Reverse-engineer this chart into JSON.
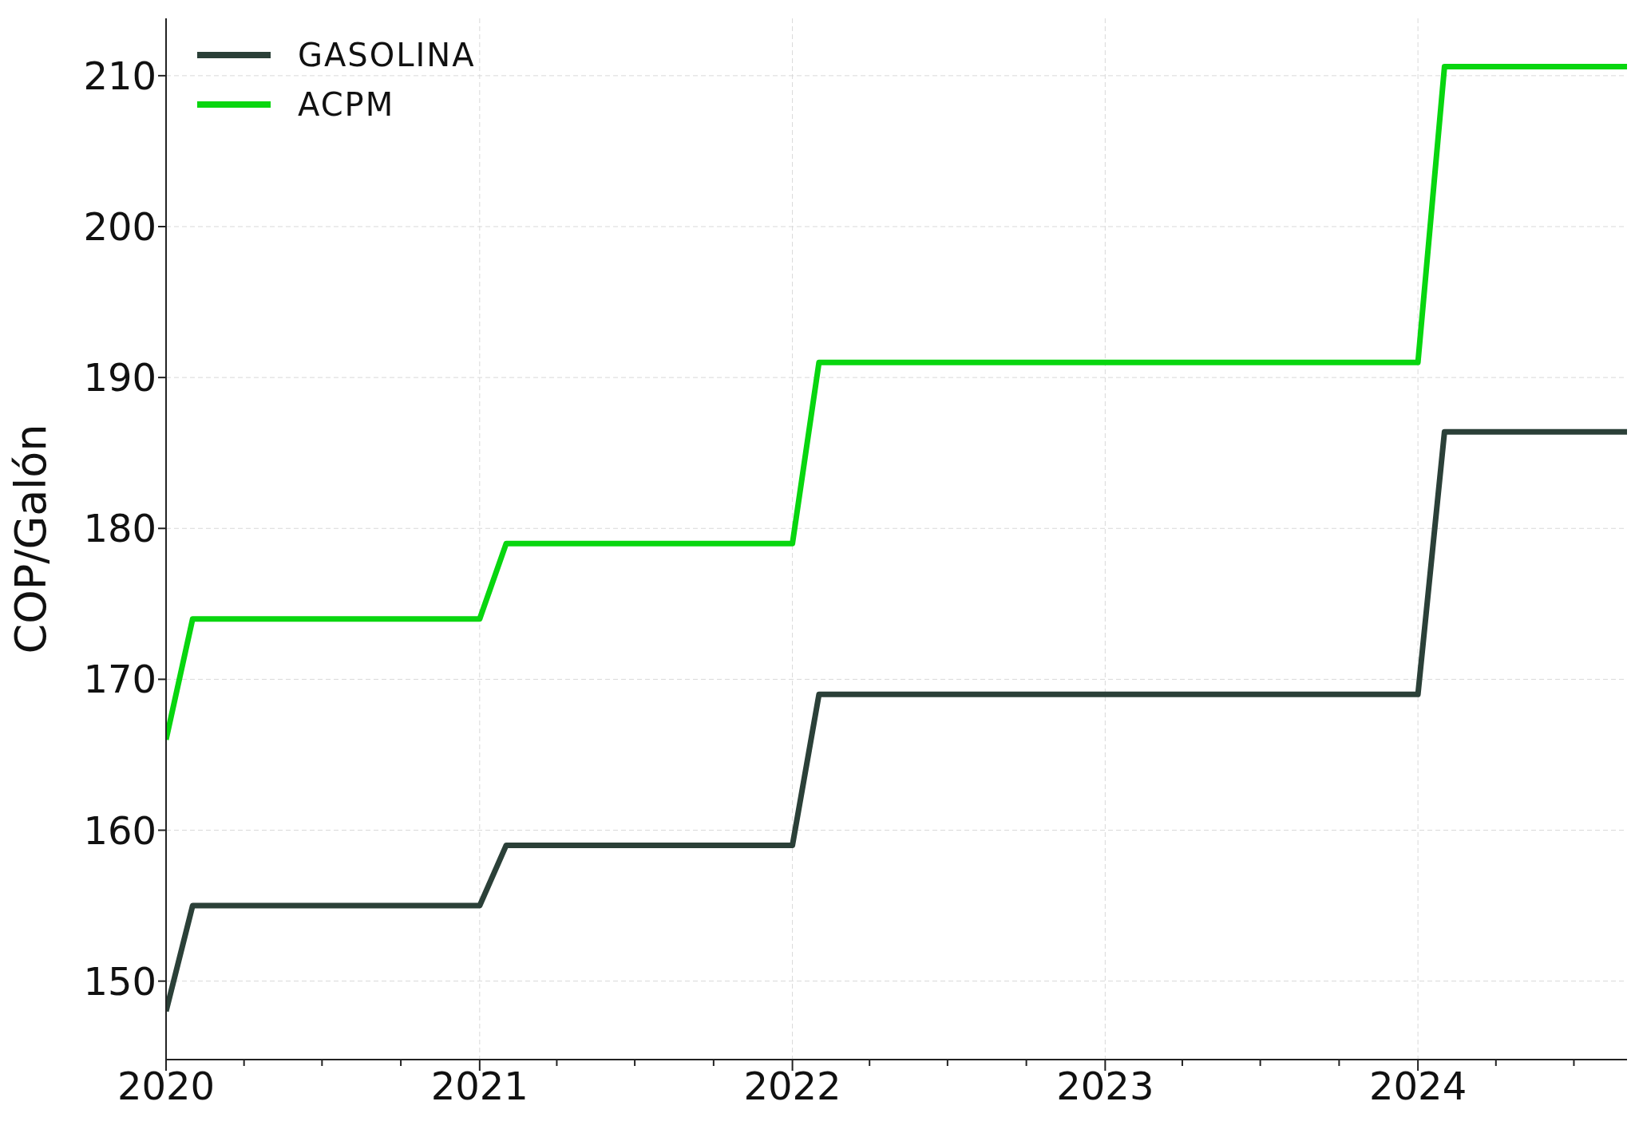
{
  "chart_data": {
    "type": "line",
    "ylabel": "COP/Galón",
    "series": [
      {
        "name": "GASOLINA",
        "color": "#2b4038",
        "x": [
          "2020-01",
          "2020-02",
          "2021-01",
          "2021-02",
          "2022-01",
          "2022-02",
          "2024-01",
          "2024-02",
          "2024-09"
        ],
        "values": [
          148,
          155,
          155,
          159,
          159,
          169,
          169,
          186.4,
          186.4
        ]
      },
      {
        "name": "ACPM",
        "color": "#08d60f",
        "x": [
          "2020-01",
          "2020-02",
          "2021-01",
          "2021-02",
          "2022-01",
          "2022-02",
          "2024-01",
          "2024-02",
          "2024-09"
        ],
        "values": [
          166,
          174,
          174,
          179,
          179,
          191,
          191,
          210.6,
          210.6
        ]
      }
    ],
    "xlim": [
      "2020-01",
      "2024-09"
    ],
    "xticks": [
      "2020",
      {
        "value": "2020-04",
        "label": null
      },
      {
        "value": "2020-07",
        "label": null
      },
      {
        "value": "2020-10",
        "label": null
      },
      "2021",
      {
        "value": "2021-04",
        "label": null
      },
      {
        "value": "2021-07",
        "label": null
      },
      {
        "value": "2021-10",
        "label": null
      },
      "2022",
      {
        "value": "2022-04",
        "label": null
      },
      {
        "value": "2022-07",
        "label": null
      },
      {
        "value": "2022-10",
        "label": null
      },
      "2023",
      {
        "value": "2023-04",
        "label": null
      },
      {
        "value": "2023-07",
        "label": null
      },
      {
        "value": "2023-10",
        "label": null
      },
      "2024",
      {
        "value": "2024-04",
        "label": null
      },
      {
        "value": "2024-07",
        "label": null
      }
    ],
    "ylim": [
      144.8,
      213.8
    ],
    "yticks": [
      150,
      160,
      170,
      180,
      190,
      200,
      210
    ],
    "grid": true,
    "legend": "top left",
    "marker": "none",
    "line_style": "solid"
  }
}
